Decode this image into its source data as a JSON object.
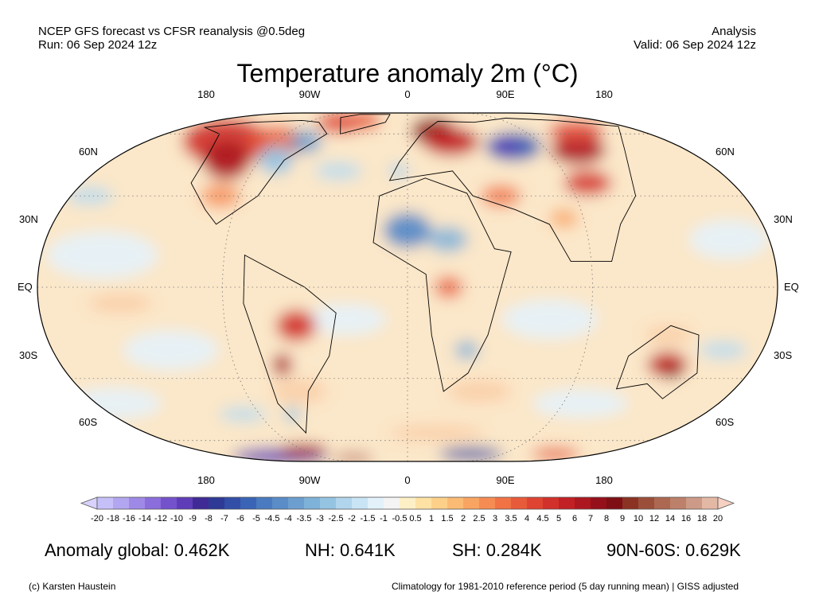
{
  "header": {
    "source": "NCEP GFS forecast vs CFSR reanalysis @0.5deg",
    "run": "Run: 06 Sep 2024 12z",
    "mode": "Analysis",
    "valid": "Valid: 06 Sep 2024 12z"
  },
  "title": "Temperature anomaly 2m (°C)",
  "map": {
    "projection": "robinson",
    "lon_labels": [
      "180",
      "90W",
      "0",
      "90E",
      "180"
    ],
    "lat_labels": [
      "60N",
      "30N",
      "EQ",
      "30S",
      "60S"
    ]
  },
  "colorbar": {
    "ticks": [
      "-20",
      "-18",
      "-16",
      "-14",
      "-12",
      "-10",
      "-9",
      "-8",
      "-7",
      "-6",
      "-5",
      "-4.5",
      "-4",
      "-3.5",
      "-3",
      "-2.5",
      "-2",
      "-1.5",
      "-1",
      "-0.5",
      "0.5",
      "1",
      "1.5",
      "2",
      "2.5",
      "3",
      "3.5",
      "4",
      "4.5",
      "5",
      "6",
      "7",
      "8",
      "9",
      "10",
      "12",
      "14",
      "16",
      "18",
      "20"
    ],
    "colors": [
      "#c6c0f8",
      "#b3a6f0",
      "#9f89e6",
      "#8b6ddb",
      "#7452cc",
      "#5f3db8",
      "#3f2a96",
      "#2e3a96",
      "#324ea7",
      "#3a64b5",
      "#4a7abf",
      "#5a8cc8",
      "#6c9fd0",
      "#7fb2d9",
      "#95c4e3",
      "#b0d5ec",
      "#c9e4f4",
      "#e2f1fa",
      "#f4f4f4",
      "#fdf0c6",
      "#fde2a4",
      "#fdd08a",
      "#fbbb74",
      "#f9a462",
      "#f68c53",
      "#f07245",
      "#e85b3a",
      "#df4331",
      "#d2302a",
      "#c22024",
      "#ad1720",
      "#95101a",
      "#7e0f14",
      "#8b3222",
      "#9b4f3b",
      "#ad6852",
      "#bd806a",
      "#cc9a86",
      "#e3b8a4"
    ],
    "extend_low": "#d8d2fc",
    "extend_high": "#f6d0c2"
  },
  "stats": {
    "global": "Anomaly global: 0.462K",
    "nh": "NH: 0.641K",
    "sh": "SH: 0.284K",
    "arctic": "90N-60S: 0.629K"
  },
  "footer": {
    "credit": "(c) Karsten Haustein",
    "climatology": "Climatology for 1981-2010 reference period (5 day running mean) | GISS adjusted"
  }
}
